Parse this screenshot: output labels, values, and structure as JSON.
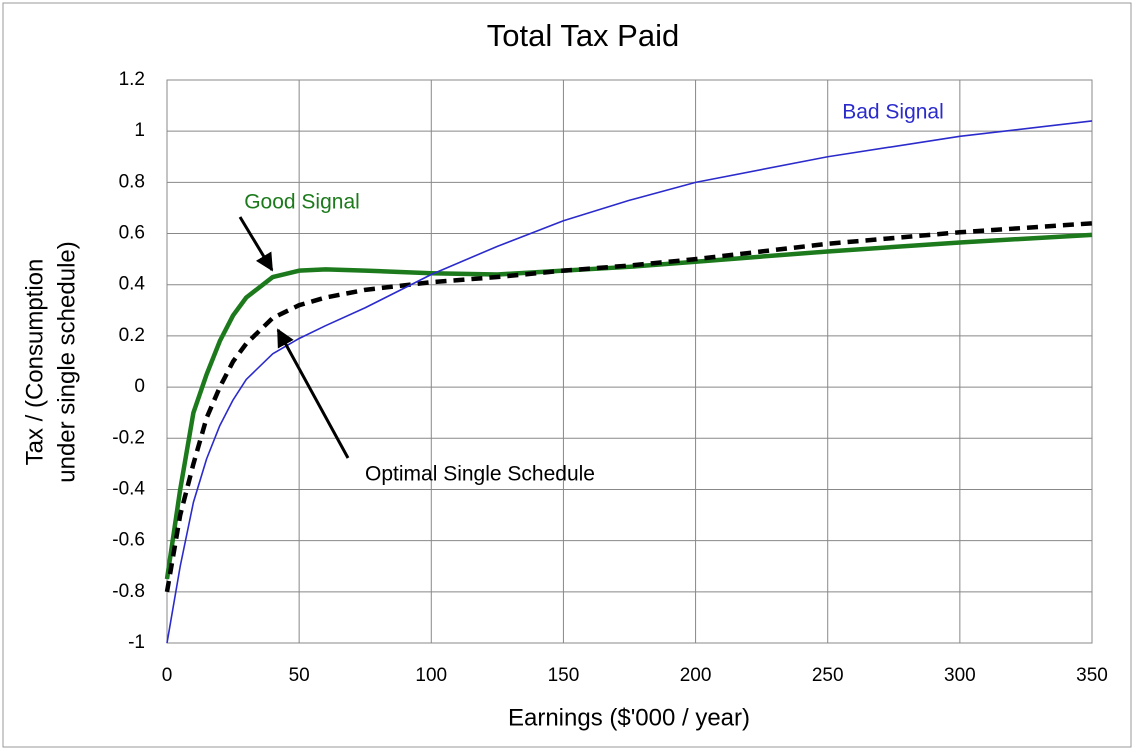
{
  "chart_data": {
    "type": "line",
    "title": "Total Tax Paid",
    "xlabel": "Earnings ($'000 / year)",
    "ylabel": [
      "Tax / (Consumption",
      "under single schedule)"
    ],
    "x": [
      0,
      5,
      10,
      15,
      20,
      25,
      30,
      40,
      50,
      60,
      75,
      100,
      125,
      150,
      175,
      200,
      250,
      300,
      350
    ],
    "series": [
      {
        "name": "Good Signal",
        "color": "#1c7a1c",
        "values": [
          -0.75,
          -0.4,
          -0.1,
          0.05,
          0.18,
          0.28,
          0.35,
          0.43,
          0.455,
          0.46,
          0.455,
          0.445,
          0.44,
          0.455,
          0.47,
          0.49,
          0.53,
          0.565,
          0.595
        ]
      },
      {
        "name": "Optimal Single Schedule",
        "color": "#000000",
        "values": [
          -0.8,
          -0.5,
          -0.3,
          -0.12,
          0.0,
          0.1,
          0.17,
          0.27,
          0.32,
          0.35,
          0.38,
          0.41,
          0.43,
          0.455,
          0.475,
          0.5,
          0.56,
          0.605,
          0.64
        ]
      },
      {
        "name": "Bad Signal",
        "color": "#2b2bcc",
        "values": [
          -1.0,
          -0.7,
          -0.45,
          -0.28,
          -0.15,
          -0.05,
          0.03,
          0.13,
          0.19,
          0.24,
          0.31,
          0.44,
          0.55,
          0.65,
          0.73,
          0.8,
          0.9,
          0.98,
          1.04
        ]
      }
    ],
    "xlim": [
      0,
      350
    ],
    "xticks": [
      0,
      50,
      100,
      150,
      200,
      250,
      300,
      350
    ],
    "ylim": [
      -1,
      1.2
    ],
    "yticks": [
      -1,
      -0.8,
      -0.6,
      -0.4,
      -0.2,
      0,
      0.2,
      0.4,
      0.6,
      0.8,
      1,
      1.2
    ],
    "grid": true
  }
}
